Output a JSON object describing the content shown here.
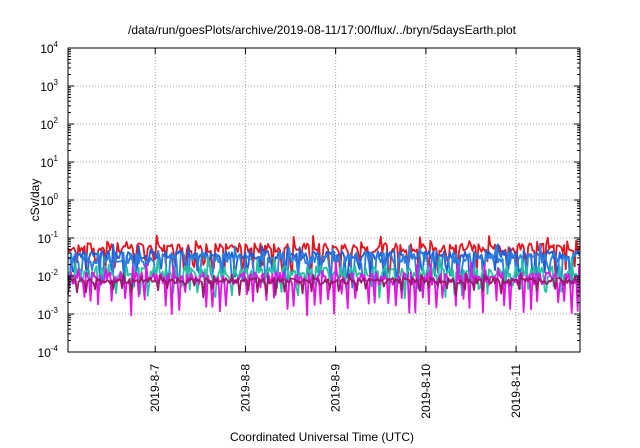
{
  "chart_data": {
    "type": "line",
    "title": "/data/run/goesPlots/archive/2019-08-11/17:00/flux/../bryn/5daysEarth.plot",
    "xlabel": "Coordinated Universal Time (UTC)",
    "ylabel": "cSv/day",
    "yscale": "log",
    "ylim": [
      0.0001,
      10000
    ],
    "y_ticks": [
      {
        "base": "10",
        "exp": "-4",
        "value": 0.0001
      },
      {
        "base": "10",
        "exp": "-3",
        "value": 0.001
      },
      {
        "base": "10",
        "exp": "-2",
        "value": 0.01
      },
      {
        "base": "10",
        "exp": "-1",
        "value": 0.1
      },
      {
        "base": "10",
        "exp": "0",
        "value": 1
      },
      {
        "base": "10",
        "exp": "1",
        "value": 10
      },
      {
        "base": "10",
        "exp": "2",
        "value": 100
      },
      {
        "base": "10",
        "exp": "3",
        "value": 1000
      },
      {
        "base": "10",
        "exp": "4",
        "value": 10000
      }
    ],
    "xlim": [
      "2019-08-06 00:48",
      "2019-08-11 17:00"
    ],
    "x_ticks": [
      "2019-8-7",
      "2019-8-8",
      "2019-8-9",
      "2019-8-10",
      "2019-8-11"
    ],
    "grid": true,
    "legend": "none",
    "series": [
      {
        "color": "#e8141c",
        "base": 0.055,
        "amp": 0.25,
        "period_h": 2.6,
        "dip": 0.55
      },
      {
        "color": "#1b5ed8",
        "base": 0.036,
        "amp": 0.22,
        "period_h": 3.3,
        "dip": 0.45
      },
      {
        "color": "#2a7fe0",
        "base": 0.03,
        "amp": 0.3,
        "period_h": 2.9,
        "dip": 0.6
      },
      {
        "color": "#22c4a0",
        "base": 0.013,
        "amp": 0.3,
        "period_h": 2.2,
        "dip": 0.5
      },
      {
        "color": "#e414e4",
        "base": 0.0085,
        "amp": 0.35,
        "period_h": 1.8,
        "dip": 0.7
      },
      {
        "color": "#9a1a6a",
        "base": 0.0075,
        "amp": 0.15,
        "period_h": 2.4,
        "dip": 0.3
      }
    ]
  }
}
